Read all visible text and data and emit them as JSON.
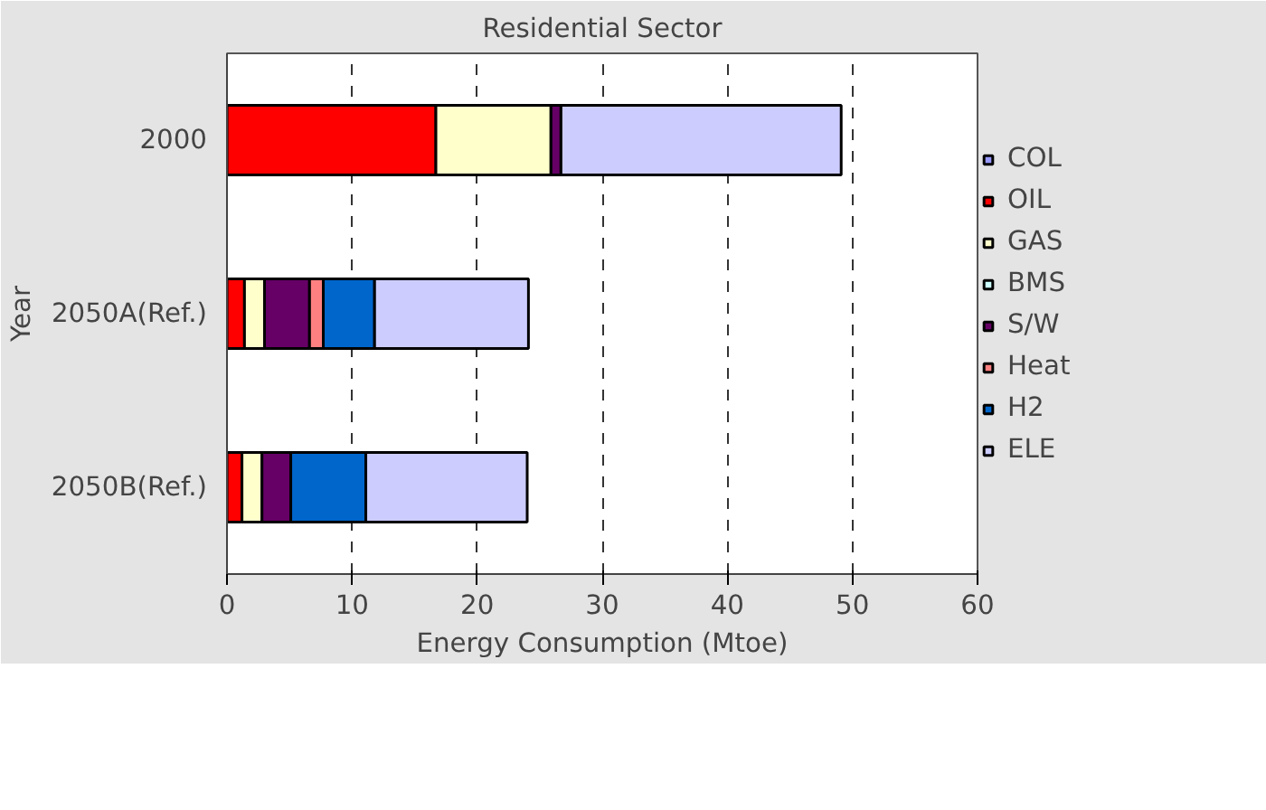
{
  "chart_data": {
    "type": "bar",
    "orientation": "horizontal",
    "stacked": true,
    "title": "Residential Sector",
    "xlabel": "Energy Consumption (Mtoe)",
    "ylabel": "Year",
    "categories": [
      "2000",
      "2050A(Ref.)",
      "2050B(Ref.)"
    ],
    "series": [
      {
        "name": "COL",
        "color": "#9999ff",
        "values": [
          0,
          0,
          0
        ]
      },
      {
        "name": "OIL",
        "color": "#ff0000",
        "values": [
          16.7,
          1.4,
          1.2
        ]
      },
      {
        "name": "GAS",
        "color": "#ffffcc",
        "values": [
          9.2,
          1.6,
          1.6
        ]
      },
      {
        "name": "BMS",
        "color": "#ccffff",
        "values": [
          0,
          0,
          0
        ]
      },
      {
        "name": "S/W",
        "color": "#660066",
        "values": [
          0.8,
          3.6,
          2.3
        ]
      },
      {
        "name": "Heat",
        "color": "#ff8080",
        "values": [
          0,
          1.1,
          0
        ]
      },
      {
        "name": "H2",
        "color": "#0066cc",
        "values": [
          0,
          4.1,
          6.0
        ]
      },
      {
        "name": "ELE",
        "color": "#ccccff",
        "values": [
          22.4,
          12.3,
          12.9
        ]
      }
    ],
    "xlim": [
      0,
      60
    ],
    "xticks": [
      0,
      10,
      20,
      30,
      40,
      50,
      60
    ],
    "grid": "x",
    "legend": "right"
  }
}
